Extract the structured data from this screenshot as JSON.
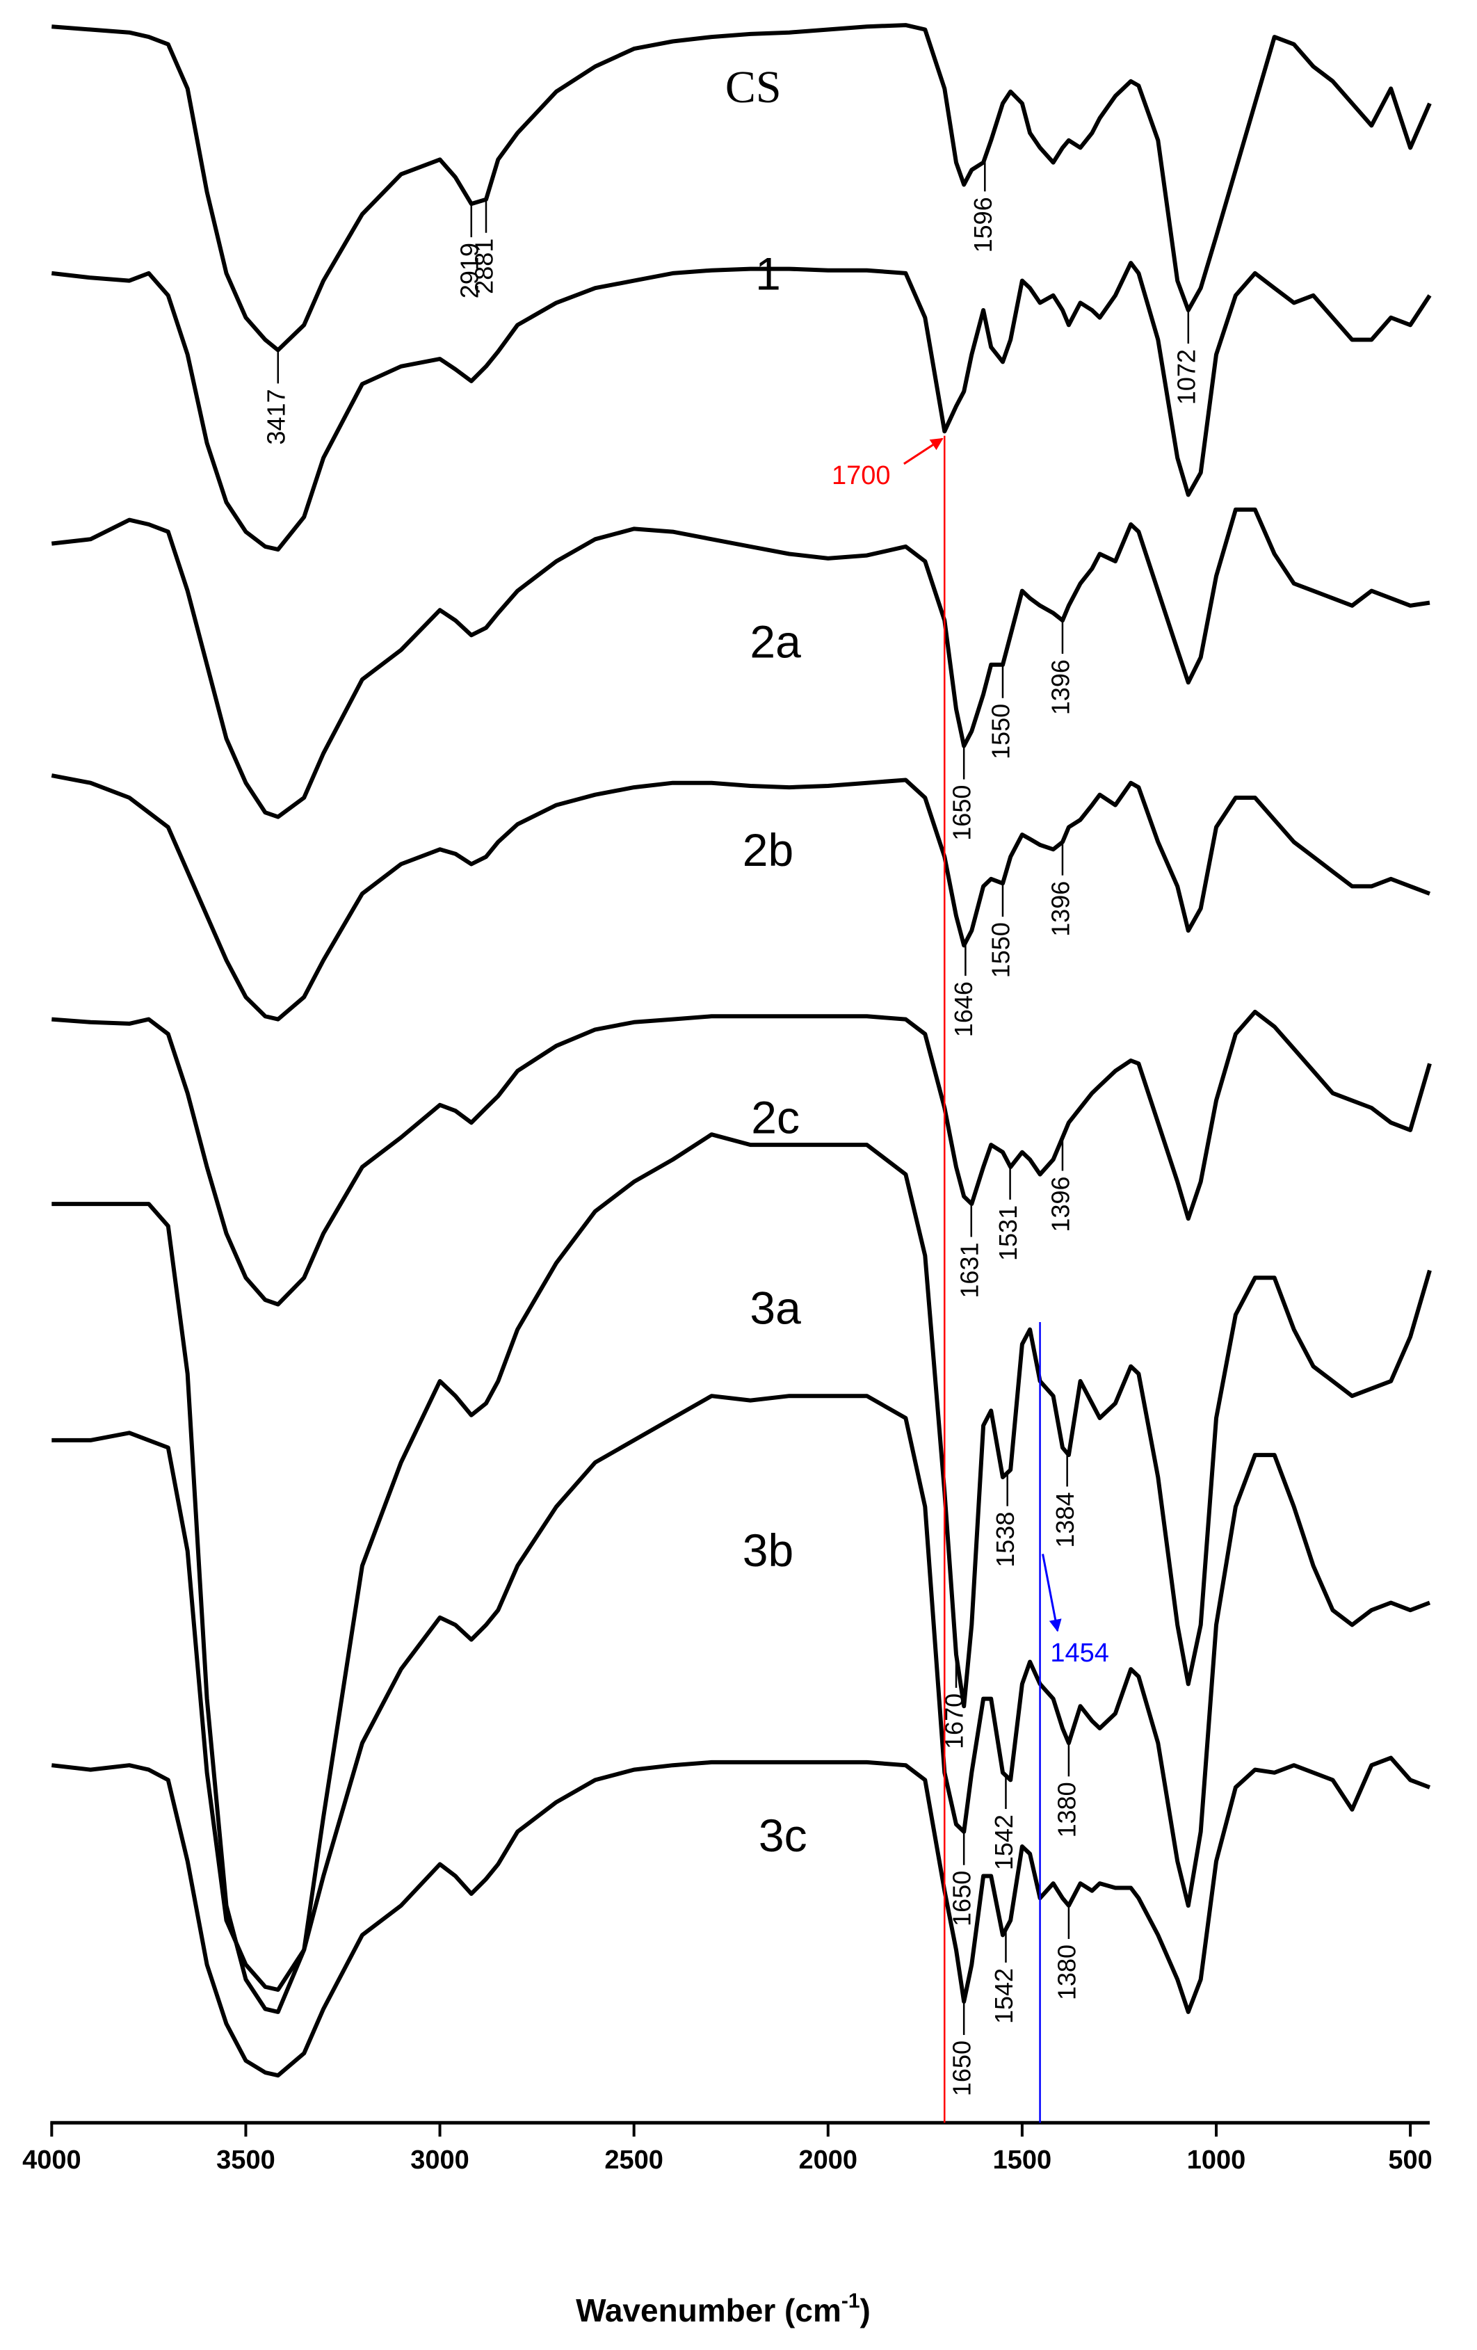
{
  "chart_data": {
    "type": "line",
    "x_label": "Wavenumber (cm",
    "x_label_sup": "-1",
    "x_label_end": ")",
    "xlim": [
      4000,
      450
    ],
    "xticks": [
      4000,
      3500,
      3000,
      2500,
      2000,
      1500,
      1000,
      500
    ],
    "ylim": [
      1437,
      0
    ],
    "x": [
      4000,
      3900,
      3800,
      3750,
      3700,
      3650,
      3600,
      3550,
      3500,
      3450,
      3417,
      3350,
      3300,
      3200,
      3100,
      3000,
      2960,
      2919,
      2881,
      2850,
      2800,
      2700,
      2600,
      2500,
      2400,
      2300,
      2200,
      2100,
      2000,
      1900,
      1800,
      1750,
      1700,
      1670,
      1650,
      1630,
      1600,
      1580,
      1550,
      1530,
      1500,
      1480,
      1454,
      1420,
      1396,
      1380,
      1350,
      1320,
      1300,
      1260,
      1220,
      1200,
      1150,
      1100,
      1072,
      1040,
      1000,
      950,
      900,
      850,
      800,
      750,
      700,
      650,
      600,
      550,
      500,
      450
    ],
    "series": [
      {
        "name": "CS",
        "color": "#000000",
        "peaks": [
          3417,
          2919,
          2881,
          1596,
          1072
        ],
        "values": [
          18,
          20,
          22,
          25,
          30,
          60,
          130,
          185,
          215,
          230,
          237,
          220,
          190,
          145,
          118,
          108,
          120,
          138,
          135,
          108,
          90,
          62,
          45,
          33,
          28,
          25,
          23,
          22,
          20,
          18,
          17,
          20,
          60,
          110,
          125,
          115,
          110,
          95,
          70,
          62,
          70,
          90,
          100,
          110,
          100,
          95,
          100,
          90,
          80,
          65,
          55,
          58,
          95,
          190,
          210,
          195,
          160,
          115,
          70,
          25,
          30,
          45,
          55,
          70,
          85,
          60,
          100,
          70
        ]
      },
      {
        "name": "1",
        "color": "#000000",
        "peaks": [],
        "values": [
          185,
          188,
          190,
          185,
          200,
          240,
          300,
          340,
          360,
          370,
          372,
          350,
          310,
          260,
          248,
          243,
          250,
          258,
          248,
          238,
          220,
          205,
          195,
          190,
          185,
          183,
          182,
          182,
          183,
          183,
          185,
          215,
          292,
          275,
          265,
          240,
          210,
          235,
          245,
          230,
          190,
          195,
          205,
          200,
          210,
          220,
          205,
          210,
          215,
          200,
          178,
          185,
          230,
          310,
          335,
          320,
          240,
          200,
          185,
          195,
          205,
          200,
          215,
          230,
          230,
          215,
          220,
          200
        ]
      },
      {
        "name": "2a",
        "color": "#000000",
        "peaks": [
          1650,
          1550,
          1396
        ],
        "values": [
          368,
          365,
          352,
          355,
          360,
          400,
          450,
          500,
          530,
          550,
          553,
          540,
          510,
          460,
          440,
          413,
          420,
          430,
          425,
          415,
          400,
          380,
          365,
          358,
          360,
          365,
          370,
          375,
          378,
          376,
          370,
          380,
          420,
          480,
          505,
          495,
          470,
          450,
          450,
          430,
          400,
          405,
          410,
          415,
          420,
          410,
          395,
          385,
          375,
          380,
          355,
          360,
          400,
          440,
          462,
          445,
          390,
          345,
          345,
          375,
          395,
          400,
          405,
          410,
          400,
          405,
          410,
          408
        ]
      },
      {
        "name": "2b",
        "color": "#000000",
        "peaks": [
          1646,
          1550,
          1396
        ],
        "values": [
          525,
          530,
          540,
          550,
          560,
          590,
          620,
          650,
          675,
          688,
          690,
          675,
          650,
          605,
          585,
          575,
          578,
          585,
          580,
          570,
          558,
          545,
          538,
          533,
          530,
          530,
          532,
          533,
          532,
          530,
          528,
          540,
          580,
          620,
          640,
          630,
          600,
          595,
          598,
          580,
          565,
          568,
          572,
          575,
          570,
          560,
          555,
          545,
          538,
          545,
          530,
          533,
          570,
          600,
          630,
          615,
          560,
          540,
          540,
          555,
          570,
          580,
          590,
          600,
          600,
          595,
          600,
          605
        ]
      },
      {
        "name": "2c",
        "color": "#000000",
        "peaks": [
          1631,
          1531,
          1396
        ],
        "values": [
          690,
          692,
          693,
          690,
          700,
          740,
          790,
          835,
          865,
          880,
          883,
          865,
          835,
          790,
          770,
          748,
          752,
          760,
          750,
          742,
          725,
          708,
          697,
          692,
          690,
          688,
          688,
          688,
          688,
          688,
          690,
          700,
          750,
          790,
          810,
          815,
          790,
          775,
          780,
          790,
          780,
          785,
          795,
          785,
          770,
          760,
          750,
          740,
          735,
          725,
          718,
          720,
          760,
          800,
          825,
          800,
          745,
          700,
          685,
          695,
          710,
          725,
          740,
          745,
          750,
          760,
          765,
          720
        ]
      },
      {
        "name": "3a",
        "color": "#000000",
        "peaks": [
          1670,
          1538,
          1384
        ],
        "values": [
          815,
          815,
          815,
          815,
          830,
          930,
          1150,
          1290,
          1340,
          1360,
          1362,
          1320,
          1230,
          1060,
          990,
          935,
          945,
          958,
          950,
          935,
          900,
          855,
          820,
          800,
          785,
          768,
          775,
          775,
          775,
          775,
          795,
          850,
          1010,
          1120,
          1155,
          1100,
          965,
          955,
          1000,
          995,
          910,
          900,
          935,
          945,
          980,
          985,
          935,
          950,
          960,
          950,
          925,
          930,
          1000,
          1100,
          1140,
          1100,
          960,
          890,
          865,
          865,
          900,
          925,
          935,
          945,
          940,
          935,
          905,
          860
        ]
      },
      {
        "name": "3b",
        "color": "#000000",
        "peaks": [
          1650,
          1542,
          1380
        ],
        "values": [
          975,
          975,
          970,
          975,
          980,
          1050,
          1200,
          1300,
          1330,
          1345,
          1347,
          1320,
          1270,
          1180,
          1130,
          1095,
          1100,
          1110,
          1100,
          1090,
          1060,
          1020,
          990,
          975,
          960,
          945,
          948,
          945,
          945,
          945,
          960,
          1020,
          1200,
          1235,
          1240,
          1200,
          1150,
          1150,
          1200,
          1205,
          1140,
          1125,
          1140,
          1150,
          1170,
          1180,
          1155,
          1165,
          1170,
          1160,
          1130,
          1135,
          1180,
          1260,
          1290,
          1240,
          1100,
          1020,
          985,
          985,
          1020,
          1060,
          1090,
          1100,
          1090,
          1085,
          1090,
          1085
        ]
      },
      {
        "name": "3c",
        "color": "#000000",
        "peaks": [
          1650,
          1542,
          1380
        ],
        "values": [
          1195,
          1198,
          1195,
          1198,
          1205,
          1260,
          1330,
          1370,
          1395,
          1403,
          1405,
          1390,
          1360,
          1310,
          1290,
          1262,
          1270,
          1282,
          1272,
          1262,
          1240,
          1220,
          1205,
          1198,
          1195,
          1193,
          1193,
          1193,
          1193,
          1193,
          1195,
          1205,
          1280,
          1320,
          1355,
          1330,
          1270,
          1270,
          1310,
          1300,
          1250,
          1255,
          1285,
          1275,
          1285,
          1290,
          1275,
          1280,
          1275,
          1278,
          1278,
          1285,
          1310,
          1340,
          1362,
          1340,
          1260,
          1210,
          1198,
          1200,
          1195,
          1200,
          1205,
          1225,
          1195,
          1190,
          1205,
          1210
        ]
      }
    ],
    "reference_lines": [
      {
        "x": 1700,
        "color": "#ff0000"
      },
      {
        "x": 1454,
        "color": "#0000ff"
      }
    ]
  }
}
